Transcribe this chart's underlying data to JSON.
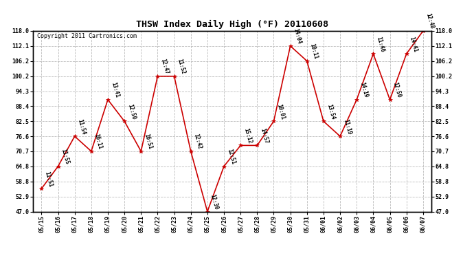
{
  "title": "THSW Index Daily High (°F) 20110608",
  "copyright": "Copyright 2011 Cartronics.com",
  "dates": [
    "05/15",
    "05/16",
    "05/17",
    "05/18",
    "05/19",
    "05/20",
    "05/21",
    "05/22",
    "05/23",
    "05/24",
    "05/25",
    "05/26",
    "05/27",
    "05/28",
    "05/29",
    "05/30",
    "05/31",
    "06/01",
    "06/02",
    "06/03",
    "06/04",
    "06/05",
    "06/06",
    "06/07"
  ],
  "values": [
    56.0,
    64.8,
    76.6,
    70.7,
    91.0,
    82.5,
    70.7,
    100.2,
    100.2,
    70.7,
    47.0,
    64.8,
    73.0,
    73.0,
    82.5,
    112.1,
    106.2,
    82.5,
    76.6,
    91.0,
    109.0,
    91.0,
    109.0,
    118.0
  ],
  "annotations": [
    "11:51",
    "11:55",
    "11:54",
    "16:11",
    "13:41",
    "12:50",
    "16:51",
    "12:47",
    "11:52",
    "12:42",
    "12:30",
    "12:51",
    "15:12",
    "14:57",
    "10:01",
    "14:04",
    "10:11",
    "13:54",
    "11:19",
    "14:19",
    "11:46",
    "12:50",
    "14:41",
    "12:48"
  ],
  "line_color": "#cc0000",
  "marker_color": "#cc0000",
  "background_color": "#ffffff",
  "grid_color": "#bbbbbb",
  "ylim": [
    47.0,
    118.0
  ],
  "yticks": [
    47.0,
    52.9,
    58.8,
    64.8,
    70.7,
    76.6,
    82.5,
    88.4,
    94.3,
    100.2,
    106.2,
    112.1,
    118.0
  ],
  "title_fontsize": 9.5,
  "annotation_fontsize": 5.5,
  "copyright_fontsize": 6,
  "tick_fontsize": 6
}
